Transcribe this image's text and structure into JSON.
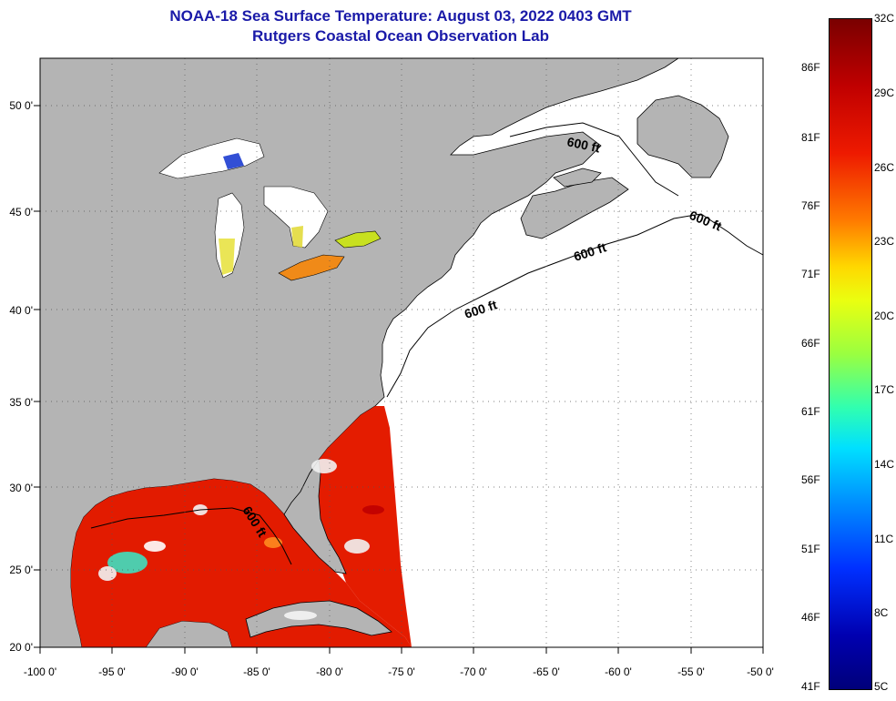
{
  "title": {
    "line1": "NOAA-18 Sea Surface Temperature:  August 03, 2022 0403 GMT",
    "line2": "Rutgers Coastal Ocean Observation Lab"
  },
  "map": {
    "lon_labels": [
      "-100 0'",
      "-95 0'",
      "-90 0'",
      "-85 0'",
      "-80 0'",
      "-75 0'",
      "-70 0'",
      "-65 0'",
      "-60 0'",
      "-55 0'",
      "-50 0'"
    ],
    "lat_labels": [
      "20 0'",
      "25 0'",
      "30 0'",
      "35 0'",
      "40 0'",
      "45 0'",
      "50 0'"
    ],
    "contour_label": "600 ft",
    "land_color": "#b4b4b4",
    "ocean_color": "#ffffff"
  },
  "colorbar": {
    "fahrenheit_labels": [
      "86F",
      "81F",
      "76F",
      "71F",
      "66F",
      "61F",
      "56F",
      "51F",
      "46F",
      "41F"
    ],
    "celsius_labels": [
      "32C",
      "29C",
      "26C",
      "23C",
      "20C",
      "17C",
      "14C",
      "11C",
      "8C",
      "5C"
    ],
    "min_c": 5,
    "max_c": 32
  }
}
